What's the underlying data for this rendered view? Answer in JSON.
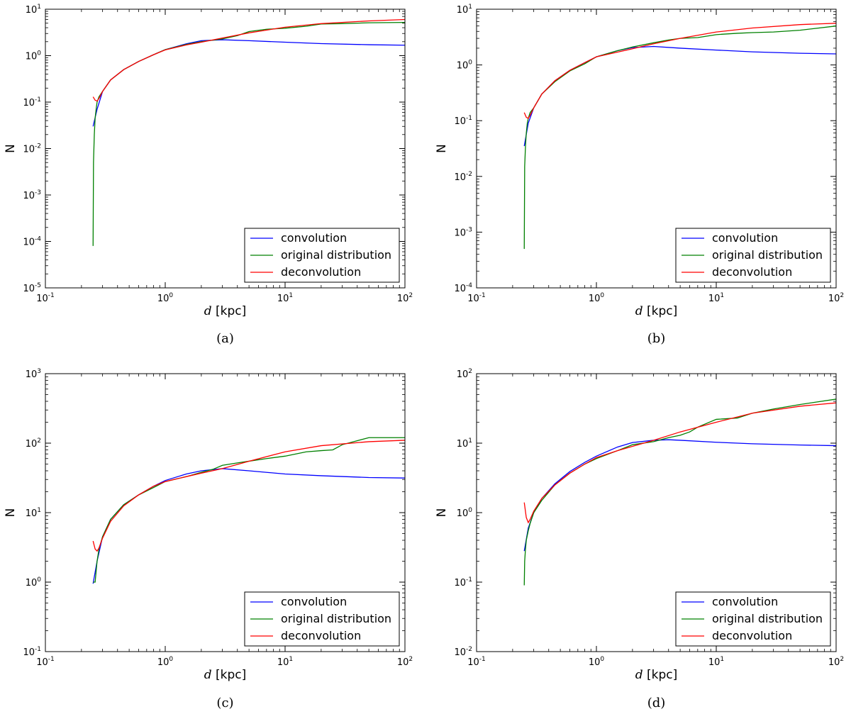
{
  "chart_data": [
    {
      "type": "line",
      "panel": "a",
      "caption": "(a)",
      "x_scale": "log",
      "y_scale": "log",
      "xlim": [
        0.1,
        100
      ],
      "ylim": [
        1e-05,
        10
      ],
      "xlabel": {
        "symbol": "d",
        "unit": "[kpc]"
      },
      "ylabel": "N",
      "xticks": [
        "10^-1",
        "10^0",
        "10^1",
        "10^2"
      ],
      "yticks": [
        "10^-5",
        "10^-4",
        "10^-3",
        "10^-2",
        "10^-1",
        "10^0",
        "10^1"
      ],
      "legend_position": "lower-right",
      "series": [
        {
          "name": "convolution",
          "color": "#0000ff",
          "x": [
            0.25,
            0.27,
            0.3,
            0.35,
            0.45,
            0.6,
            0.8,
            1.0,
            1.5,
            2.0,
            3.0,
            5.0,
            10,
            20,
            50,
            100
          ],
          "y": [
            0.03,
            0.07,
            0.17,
            0.3,
            0.5,
            0.75,
            1.05,
            1.35,
            1.8,
            2.1,
            2.2,
            2.1,
            1.95,
            1.82,
            1.72,
            1.68
          ]
        },
        {
          "name": "original distribution",
          "color": "#008000",
          "x": [
            0.25,
            0.252,
            0.256,
            0.26,
            0.265,
            0.27,
            0.28,
            0.3,
            0.35,
            0.45,
            0.6,
            0.8,
            1.0,
            1.5,
            2.0,
            3.0,
            4.0,
            5.0,
            7.0,
            10,
            15,
            20,
            30,
            50,
            100
          ],
          "y": [
            8e-05,
            0.005,
            0.02,
            0.045,
            0.07,
            0.1,
            0.13,
            0.17,
            0.3,
            0.5,
            0.75,
            1.05,
            1.35,
            1.75,
            2.0,
            2.3,
            2.7,
            3.3,
            3.7,
            3.9,
            4.3,
            4.8,
            4.9,
            5.1,
            5.2
          ]
        },
        {
          "name": "deconvolution",
          "color": "#ff0000",
          "x": [
            0.25,
            0.26,
            0.27,
            0.28,
            0.3,
            0.35,
            0.45,
            0.6,
            0.8,
            1.0,
            1.5,
            2.0,
            3.0,
            5.0,
            10,
            20,
            50,
            100
          ],
          "y": [
            0.13,
            0.11,
            0.105,
            0.12,
            0.17,
            0.3,
            0.5,
            0.75,
            1.05,
            1.33,
            1.7,
            1.95,
            2.4,
            3.1,
            4.1,
            4.9,
            5.6,
            6.0
          ]
        }
      ]
    },
    {
      "type": "line",
      "panel": "b",
      "caption": "(b)",
      "x_scale": "log",
      "y_scale": "log",
      "xlim": [
        0.1,
        100
      ],
      "ylim": [
        0.0001,
        10
      ],
      "xlabel": {
        "symbol": "d",
        "unit": "[kpc]"
      },
      "ylabel": "N",
      "xticks": [
        "10^-1",
        "10^0",
        "10^1",
        "10^2"
      ],
      "yticks": [
        "10^-4",
        "10^-3",
        "10^-2",
        "10^-1",
        "10^0",
        "10^1"
      ],
      "legend_position": "lower-right",
      "series": [
        {
          "name": "convolution",
          "color": "#0000ff",
          "x": [
            0.25,
            0.27,
            0.3,
            0.35,
            0.45,
            0.6,
            0.8,
            1.0,
            1.5,
            2.0,
            3.0,
            5.0,
            10,
            20,
            50,
            100
          ],
          "y": [
            0.035,
            0.09,
            0.17,
            0.3,
            0.52,
            0.8,
            1.1,
            1.4,
            1.8,
            2.05,
            2.15,
            2.0,
            1.85,
            1.72,
            1.62,
            1.58
          ]
        },
        {
          "name": "original distribution",
          "color": "#008000",
          "x": [
            0.25,
            0.252,
            0.256,
            0.26,
            0.265,
            0.27,
            0.28,
            0.3,
            0.35,
            0.45,
            0.6,
            0.8,
            1.0,
            1.5,
            2.0,
            3.0,
            4.0,
            5.0,
            7.0,
            10,
            15,
            20,
            30,
            50,
            100
          ],
          "y": [
            0.0005,
            0.015,
            0.035,
            0.06,
            0.09,
            0.11,
            0.14,
            0.17,
            0.3,
            0.5,
            0.78,
            1.05,
            1.4,
            1.8,
            2.1,
            2.5,
            2.8,
            3.0,
            3.1,
            3.5,
            3.7,
            3.8,
            3.9,
            4.2,
            5.0
          ]
        },
        {
          "name": "deconvolution",
          "color": "#ff0000",
          "x": [
            0.25,
            0.26,
            0.27,
            0.28,
            0.3,
            0.35,
            0.45,
            0.6,
            0.8,
            1.0,
            1.5,
            2.0,
            3.0,
            5.0,
            10,
            20,
            50,
            100
          ],
          "y": [
            0.14,
            0.115,
            0.11,
            0.125,
            0.17,
            0.3,
            0.52,
            0.8,
            1.1,
            1.4,
            1.7,
            1.95,
            2.4,
            3.0,
            3.9,
            4.6,
            5.3,
            5.6
          ]
        }
      ]
    },
    {
      "type": "line",
      "panel": "c",
      "caption": "(c)",
      "x_scale": "log",
      "y_scale": "log",
      "xlim": [
        0.1,
        100
      ],
      "ylim": [
        0.1,
        1000
      ],
      "xlabel": {
        "symbol": "d",
        "unit": "[kpc]"
      },
      "ylabel": "N",
      "xticks": [
        "10^-1",
        "10^0",
        "10^1",
        "10^2"
      ],
      "yticks": [
        "10^-1",
        "10^0",
        "10^1",
        "10^2",
        "10^3"
      ],
      "legend_position": "lower-right",
      "series": [
        {
          "name": "convolution",
          "color": "#0000ff",
          "x": [
            0.25,
            0.27,
            0.3,
            0.35,
            0.45,
            0.6,
            0.8,
            1.0,
            1.5,
            2.0,
            3.0,
            5.0,
            10,
            20,
            50,
            100
          ],
          "y": [
            0.95,
            2.0,
            4.5,
            8.0,
            13,
            18,
            24,
            29,
            36,
            40,
            43,
            40,
            36,
            34,
            32,
            31.5
          ]
        },
        {
          "name": "original distribution",
          "color": "#008000",
          "x": [
            0.25,
            0.26,
            0.27,
            0.28,
            0.3,
            0.35,
            0.45,
            0.6,
            0.8,
            1.0,
            1.5,
            2.0,
            2.5,
            3.0,
            4.0,
            5.0,
            7.0,
            10,
            15,
            20,
            25,
            30,
            50,
            100
          ],
          "y": [
            1.0,
            1.0,
            2.0,
            3.0,
            4.5,
            8.0,
            13,
            18,
            23,
            28,
            33,
            38,
            42,
            48,
            52,
            55,
            60,
            65,
            75,
            78,
            80,
            95,
            120,
            120
          ]
        },
        {
          "name": "deconvolution",
          "color": "#ff0000",
          "x": [
            0.25,
            0.26,
            0.27,
            0.28,
            0.3,
            0.35,
            0.45,
            0.6,
            0.8,
            1.0,
            1.5,
            2.0,
            3.0,
            5.0,
            10,
            20,
            50,
            100
          ],
          "y": [
            3.9,
            3.0,
            2.8,
            3.1,
            4.3,
            7.5,
            12.5,
            18,
            24,
            28,
            33,
            37,
            43,
            55,
            75,
            92,
            105,
            110
          ]
        }
      ]
    },
    {
      "type": "line",
      "panel": "d",
      "caption": "(d)",
      "x_scale": "log",
      "y_scale": "log",
      "xlim": [
        0.1,
        100
      ],
      "ylim": [
        0.01,
        100
      ],
      "xlabel": {
        "symbol": "d",
        "unit": "[kpc]"
      },
      "ylabel": "N",
      "xticks": [
        "10^-1",
        "10^0",
        "10^1",
        "10^2"
      ],
      "yticks": [
        "10^-2",
        "10^-1",
        "10^0",
        "10^1",
        "10^2"
      ],
      "legend_position": "lower-right",
      "series": [
        {
          "name": "convolution",
          "color": "#0000ff",
          "x": [
            0.25,
            0.27,
            0.3,
            0.35,
            0.45,
            0.6,
            0.8,
            1.0,
            1.5,
            2.0,
            3.0,
            4.0,
            5.0,
            10,
            20,
            50,
            100
          ],
          "y": [
            0.28,
            0.6,
            1.0,
            1.6,
            2.6,
            3.9,
            5.3,
            6.5,
            8.8,
            10.2,
            11.0,
            11.2,
            11.0,
            10.3,
            9.8,
            9.4,
            9.2
          ]
        },
        {
          "name": "original distribution",
          "color": "#008000",
          "x": [
            0.25,
            0.252,
            0.256,
            0.26,
            0.27,
            0.28,
            0.3,
            0.35,
            0.45,
            0.6,
            0.8,
            1.0,
            1.5,
            2.0,
            3.0,
            4.0,
            5.0,
            6.0,
            7.0,
            10,
            15,
            20,
            30,
            50,
            100
          ],
          "y": [
            0.09,
            0.2,
            0.3,
            0.4,
            0.55,
            0.7,
            1.0,
            1.5,
            2.5,
            3.7,
            5.0,
            6.0,
            7.8,
            9.5,
            10.5,
            12.0,
            13.0,
            14.5,
            17.0,
            22.0,
            23.0,
            27.0,
            31.0,
            36.0,
            43.0
          ]
        },
        {
          "name": "deconvolution",
          "color": "#ff0000",
          "x": [
            0.25,
            0.26,
            0.27,
            0.28,
            0.3,
            0.35,
            0.45,
            0.6,
            0.8,
            1.0,
            1.5,
            2.0,
            3.0,
            5.0,
            10,
            20,
            50,
            100
          ],
          "y": [
            1.4,
            0.85,
            0.72,
            0.8,
            1.05,
            1.6,
            2.5,
            3.7,
            5.0,
            6.2,
            7.8,
            9.0,
            11.0,
            14.5,
            20.0,
            27.0,
            34.0,
            38.0
          ]
        }
      ]
    }
  ]
}
